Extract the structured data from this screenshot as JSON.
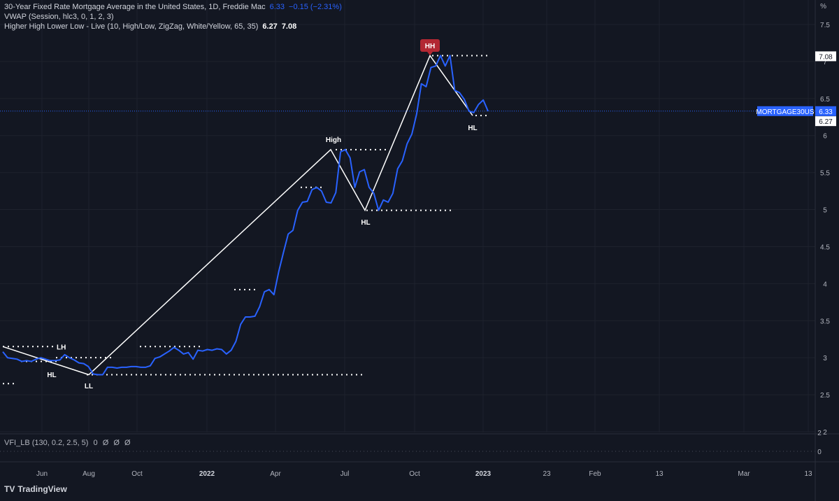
{
  "legend": {
    "line1": {
      "title": "30-Year Fixed Rate Mortgage Average in the United States, 1D, Freddie Mac",
      "value": "6.33",
      "change": "−0.15 (−2.31%)"
    },
    "line2": {
      "title": "VWAP (Session, hlc3, 0, 1, 2, 3)"
    },
    "line3": {
      "title": "Higher High Lower Low - Live (10, High/Low, ZigZag, White/Yellow, 65, 35)",
      "v1": "6.27",
      "v2": "7.08"
    }
  },
  "vfi": {
    "title": "VFI_LB (130, 0.2, 2.5, 5)",
    "values": [
      "0",
      "Ø",
      "Ø",
      "Ø"
    ],
    "zero_label": "0",
    "two_label": "2"
  },
  "brand": {
    "name": "TradingView",
    "logo": "TV"
  },
  "axis": {
    "unit_label": "%"
  },
  "price_tags": {
    "symbol": "MORTGAGE30US",
    "last": "6.33",
    "hh_level": "7.08",
    "hl_level": "6.27"
  },
  "colors": {
    "background": "#131722",
    "series": "#2962ff",
    "zigzag": "#ffffff",
    "hh_badge": "#b22833",
    "grid": "#1e222d",
    "text": "#b2b5be"
  },
  "chart_data": {
    "type": "line",
    "title": "30-Year Fixed Rate Mortgage Average in the United States",
    "ylim": [
      1.8,
      7.6
    ],
    "yticks": [
      2,
      2.5,
      3,
      3.5,
      4,
      4.5,
      5,
      5.5,
      6,
      6.5,
      7,
      7.5
    ],
    "x_tick_labels": [
      "Jun",
      "Aug",
      "Oct",
      "2022",
      "Apr",
      "Jul",
      "Oct",
      "2023",
      "23",
      "Feb",
      "13",
      "Mar",
      "13"
    ],
    "series": [
      {
        "name": "MORTGAGE30US",
        "values": [
          3.08,
          3.0,
          2.99,
          2.98,
          2.95,
          2.96,
          2.95,
          2.98,
          3.0,
          2.98,
          2.96,
          2.96,
          2.97,
          3.04,
          3.0,
          2.97,
          2.93,
          2.92,
          2.88,
          2.78,
          2.77,
          2.77,
          2.87,
          2.87,
          2.86,
          2.87,
          2.87,
          2.88,
          2.88,
          2.87,
          2.87,
          2.89,
          2.99,
          3.01,
          3.05,
          3.09,
          3.14,
          3.1,
          3.05,
          3.07,
          2.98,
          3.1,
          3.09,
          3.11,
          3.1,
          3.12,
          3.11,
          3.05,
          3.1,
          3.22,
          3.45,
          3.55,
          3.55,
          3.56,
          3.69,
          3.89,
          3.92,
          3.85,
          4.16,
          4.42,
          4.67,
          4.72,
          4.99,
          5.1,
          5.11,
          5.27,
          5.3,
          5.25,
          5.1,
          5.09,
          5.23,
          5.78,
          5.81,
          5.7,
          5.3,
          5.51,
          5.54,
          5.3,
          5.22,
          4.99,
          5.13,
          5.1,
          5.22,
          5.55,
          5.66,
          5.89,
          6.02,
          6.29,
          6.7,
          6.66,
          6.92,
          6.94,
          7.08,
          6.94,
          7.08,
          6.61,
          6.58,
          6.49,
          6.33,
          6.31,
          6.42,
          6.48,
          6.33
        ]
      },
      {
        "name": "ZigZag",
        "values": [
          3.15,
          2.77,
          5.81,
          4.99,
          7.08,
          6.27
        ]
      }
    ],
    "swing_labels": [
      "LH",
      "HL",
      "LL",
      "High",
      "HL",
      "HH",
      "HL"
    ],
    "levels": [
      3.15,
      2.95,
      3.0,
      2.77,
      2.65,
      3.15,
      3.92,
      5.3,
      5.81,
      4.99,
      7.08,
      6.27
    ],
    "legend_position": "top-left",
    "grid": true
  }
}
